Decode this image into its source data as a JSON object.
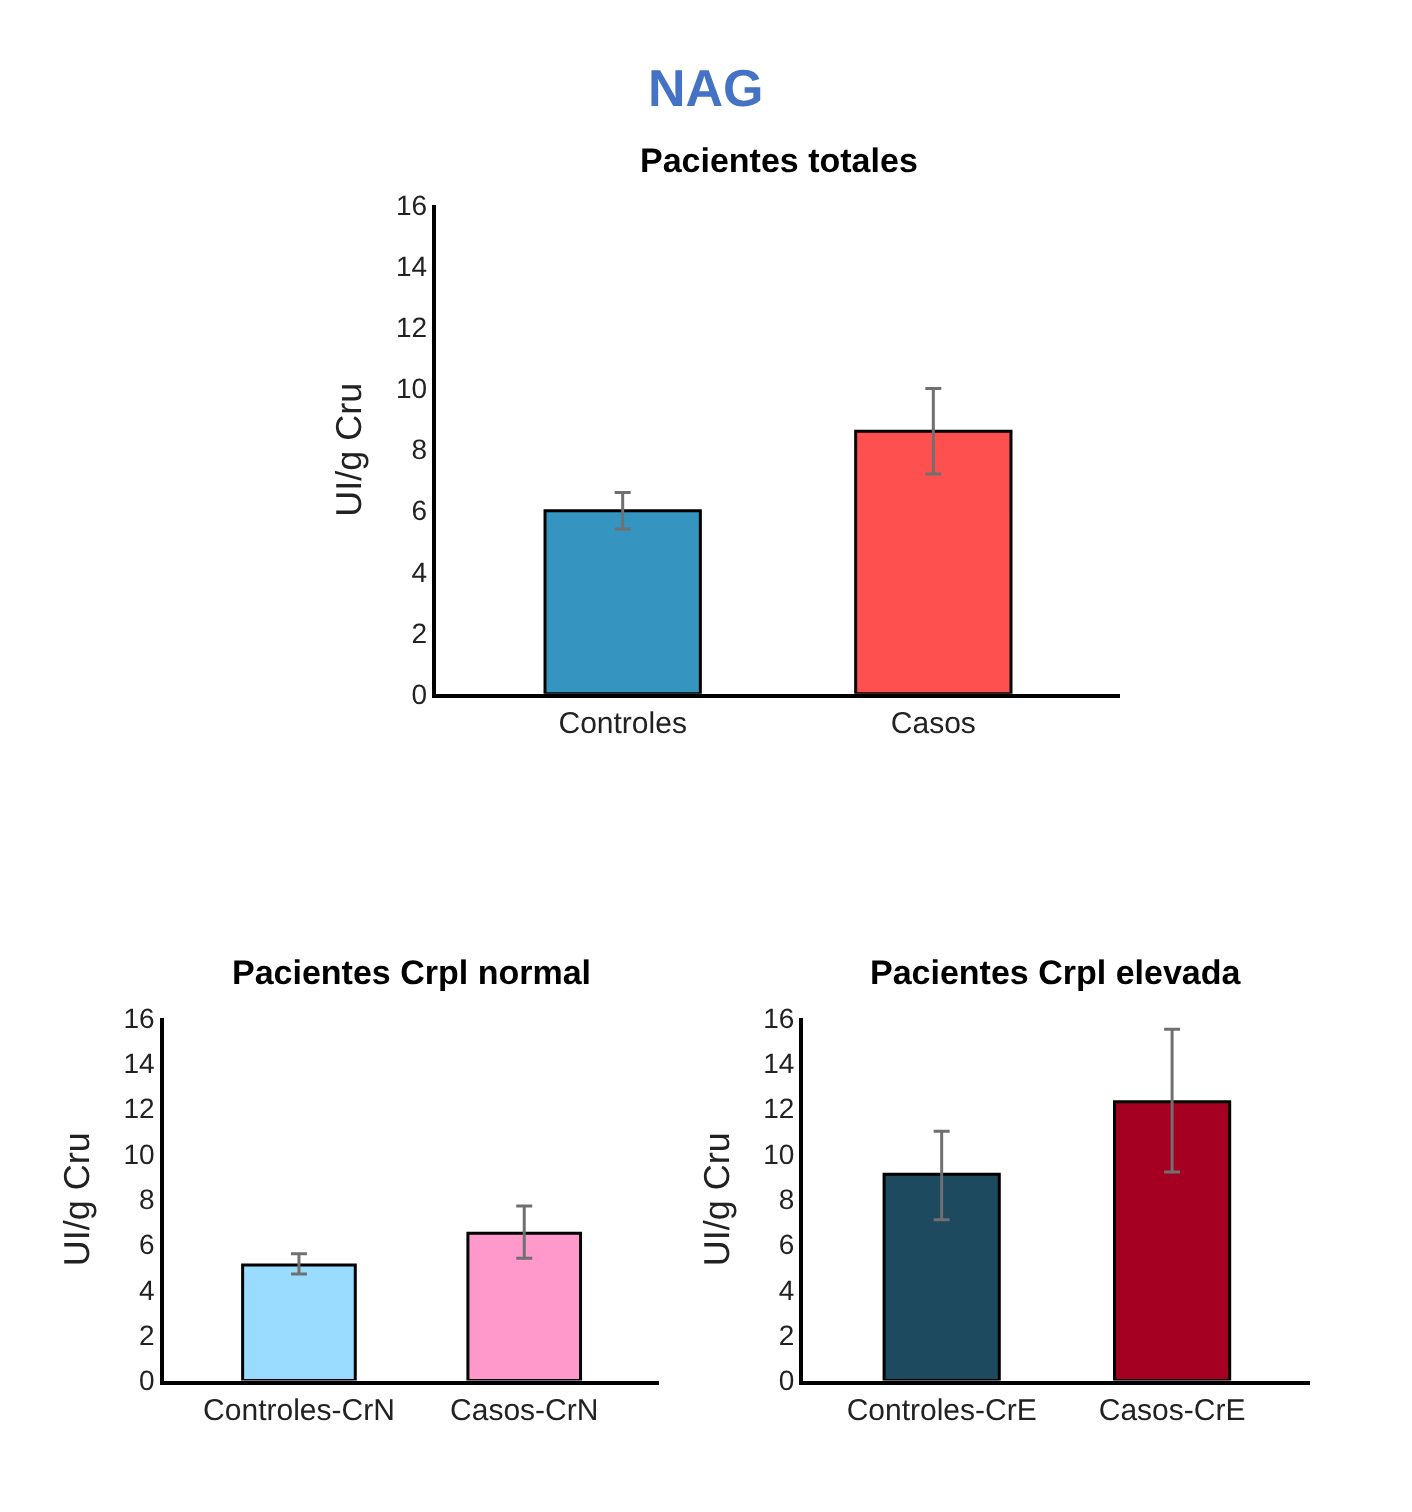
{
  "chart_data": [
    {
      "type": "other",
      "title": "NAG"
    },
    {
      "type": "bar",
      "title": "Pacientes totales",
      "ylabel": "UI/g Cru",
      "categories": [
        "Controles",
        "Casos"
      ],
      "values": [
        6.0,
        8.6
      ],
      "colors": [
        "#3595c0",
        "#ff5050"
      ],
      "errors": [
        [
          5.4,
          6.6
        ],
        [
          7.2,
          10.0
        ]
      ],
      "ylim": [
        0,
        16
      ],
      "yticks": [
        0,
        2,
        4,
        6,
        8,
        10,
        12,
        14,
        16
      ]
    },
    {
      "type": "bar",
      "title": "Pacientes Crpl normal",
      "ylabel": "UI/g Cru",
      "categories": [
        "Controles-CrN",
        "Casos-CrN"
      ],
      "values": [
        5.1,
        6.5
      ],
      "colors": [
        "#99dcff",
        "#ff99cc"
      ],
      "errors": [
        [
          4.7,
          5.6
        ],
        [
          5.4,
          7.7
        ]
      ],
      "ylim": [
        0,
        16
      ],
      "yticks": [
        0,
        2,
        4,
        6,
        8,
        10,
        12,
        14,
        16
      ]
    },
    {
      "type": "bar",
      "title": "Pacientes Crpl elevada",
      "ylabel": "UI/g Cru",
      "categories": [
        "Controles-CrE",
        "Casos-CrE"
      ],
      "values": [
        9.1,
        12.3
      ],
      "colors": [
        "#1d4a5e",
        "#a50021"
      ],
      "errors": [
        [
          7.1,
          11.0
        ],
        [
          9.2,
          15.5
        ]
      ],
      "ylim": [
        0,
        16
      ],
      "yticks": [
        0,
        2,
        4,
        6,
        8,
        10,
        12,
        14,
        16
      ]
    }
  ]
}
